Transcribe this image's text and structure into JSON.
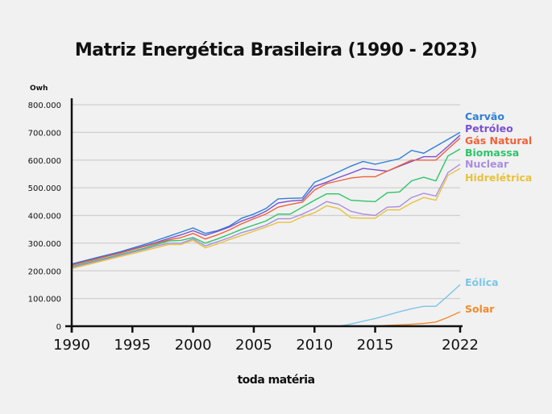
{
  "chart_data": {
    "type": "line",
    "title": "Matriz Energética Brasileira (1990 - 2023)",
    "ylabel": "Owh",
    "xlabel": "",
    "ylim": [
      0,
      800000
    ],
    "xlim": [
      1990,
      2022
    ],
    "grid": true,
    "legend": "right, labels at line ends",
    "x_ticks": [
      1990,
      1995,
      2000,
      2005,
      2010,
      2015,
      2022
    ],
    "y_ticks": [
      {
        "value": 0,
        "label": "0"
      },
      {
        "value": 100000,
        "label": "100.000"
      },
      {
        "value": 200000,
        "label": "200.000"
      },
      {
        "value": 300000,
        "label": "300.000"
      },
      {
        "value": 400000,
        "label": "400.000"
      },
      {
        "value": 500000,
        "label": "500.000"
      },
      {
        "value": 600000,
        "label": "600.000"
      },
      {
        "value": 700000,
        "label": "700.000"
      },
      {
        "value": 800000,
        "label": "800.000"
      }
    ],
    "x": [
      1990,
      1991,
      1992,
      1993,
      1994,
      1995,
      1996,
      1997,
      1998,
      1999,
      2000,
      2001,
      2002,
      2003,
      2004,
      2005,
      2006,
      2007,
      2008,
      2009,
      2010,
      2011,
      2012,
      2013,
      2014,
      2015,
      2016,
      2017,
      2018,
      2019,
      2020,
      2021,
      2022
    ],
    "series": [
      {
        "name": "Carvão",
        "color": "#2f7fd6",
        "values": [
          225000,
          236000,
          247000,
          258000,
          269000,
          282000,
          295000,
          310000,
          325000,
          340000,
          355000,
          335000,
          345000,
          362000,
          390000,
          405000,
          425000,
          460000,
          462000,
          463000,
          520000,
          538000,
          558000,
          578000,
          595000,
          585000,
          595000,
          605000,
          635000,
          625000,
          650000,
          675000,
          700000
        ]
      },
      {
        "name": "Petróleo",
        "color": "#7a4fcf",
        "values": [
          222000,
          233000,
          244000,
          255000,
          266000,
          278000,
          290000,
          303000,
          317000,
          330000,
          345000,
          328000,
          342000,
          358000,
          380000,
          395000,
          415000,
          445000,
          452000,
          455000,
          505000,
          520000,
          537000,
          553000,
          570000,
          565000,
          560000,
          578000,
          595000,
          612000,
          612000,
          650000,
          690000
        ]
      },
      {
        "name": "Gás Natural",
        "color": "#f0613a",
        "values": [
          220000,
          231000,
          242000,
          253000,
          264000,
          276000,
          288000,
          300000,
          312000,
          320000,
          335000,
          315000,
          330000,
          348000,
          370000,
          388000,
          405000,
          430000,
          440000,
          448000,
          492000,
          515000,
          525000,
          535000,
          540000,
          540000,
          560000,
          580000,
          600000,
          600000,
          600000,
          640000,
          680000
        ]
      },
      {
        "name": "Biomassa",
        "color": "#2dc46a",
        "values": [
          215000,
          226000,
          237000,
          248000,
          259000,
          270000,
          282000,
          295000,
          308000,
          310000,
          320000,
          300000,
          315000,
          332000,
          350000,
          365000,
          380000,
          405000,
          405000,
          430000,
          455000,
          478000,
          478000,
          455000,
          452000,
          450000,
          482000,
          485000,
          525000,
          538000,
          525000,
          615000,
          640000
        ]
      },
      {
        "name": "Nuclear",
        "color": "#a98ee0",
        "values": [
          212000,
          223000,
          234000,
          245000,
          256000,
          267000,
          278000,
          290000,
          300000,
          300000,
          315000,
          290000,
          305000,
          320000,
          338000,
          350000,
          365000,
          388000,
          388000,
          405000,
          425000,
          450000,
          440000,
          415000,
          405000,
          400000,
          430000,
          432000,
          465000,
          480000,
          470000,
          555000,
          585000
        ]
      },
      {
        "name": "Hidrelétrica",
        "color": "#e8c23a",
        "values": [
          208000,
          219000,
          230000,
          241000,
          252000,
          262000,
          273000,
          284000,
          295000,
          295000,
          310000,
          283000,
          297000,
          313000,
          328000,
          343000,
          358000,
          375000,
          375000,
          395000,
          410000,
          435000,
          425000,
          392000,
          390000,
          390000,
          420000,
          420000,
          445000,
          465000,
          455000,
          545000,
          570000
        ]
      },
      {
        "name": "Eólica",
        "color": "#7cc6e8",
        "values": [
          null,
          null,
          null,
          null,
          null,
          null,
          null,
          null,
          null,
          null,
          null,
          null,
          null,
          null,
          null,
          null,
          null,
          null,
          null,
          null,
          null,
          null,
          0,
          8000,
          18000,
          28000,
          40000,
          52000,
          63000,
          72000,
          72000,
          110000,
          150000
        ]
      },
      {
        "name": "Solar",
        "color": "#f28a2a",
        "values": [
          null,
          null,
          null,
          null,
          null,
          null,
          null,
          null,
          null,
          null,
          null,
          null,
          null,
          null,
          null,
          null,
          null,
          null,
          null,
          null,
          null,
          null,
          null,
          null,
          null,
          0,
          3000,
          5000,
          7000,
          10000,
          15000,
          32000,
          52000
        ]
      }
    ]
  },
  "footer": "toda matéria"
}
